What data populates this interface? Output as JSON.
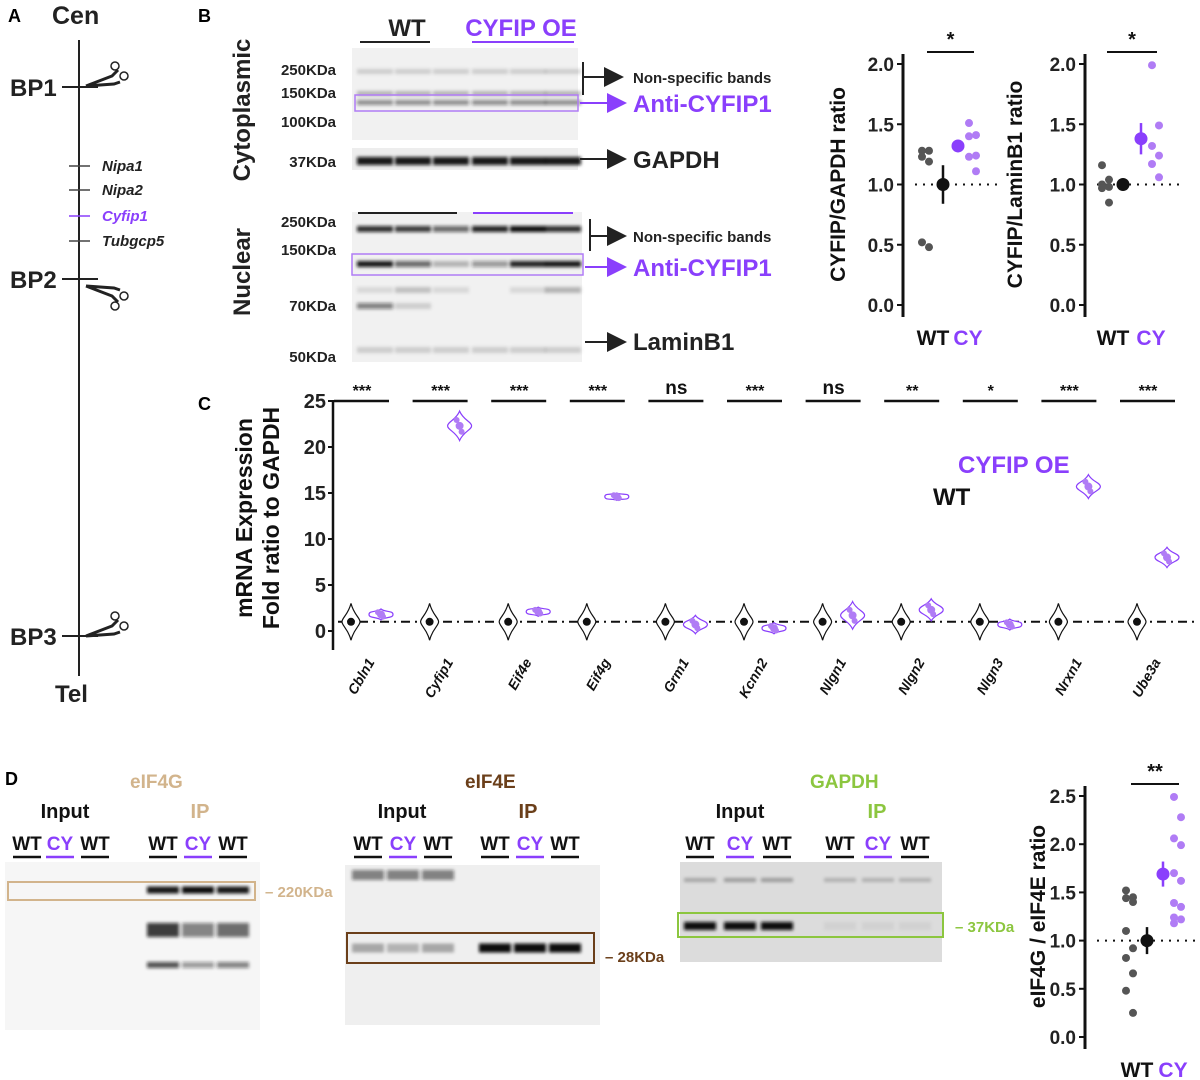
{
  "colors": {
    "wt": "#222222",
    "cy": "#8a3ffc",
    "cy_light": "#b07cf5",
    "eif4g": "#d2b48c",
    "eif4e": "#6b3f1a",
    "gapdh": "#8cc63f"
  },
  "panel_a": {
    "letter": "A",
    "top": "Cen",
    "bottom": "Tel",
    "breakpoints": [
      "BP1",
      "BP2",
      "BP3"
    ],
    "genes": [
      {
        "name": "Nipa1",
        "highlight": false
      },
      {
        "name": "Nipa2",
        "highlight": false
      },
      {
        "name": "Cyfip1",
        "highlight": true
      },
      {
        "name": "Tubgcp5",
        "highlight": false
      }
    ],
    "icon": "scissors-icon"
  },
  "panel_b": {
    "letter": "B",
    "groups": [
      "WT",
      "CYFIP OE"
    ],
    "cytoplasmic": {
      "label": "Cytoplasmic",
      "markers": [
        "250KDa",
        "150KDa",
        "100KDa"
      ],
      "gapdh_marker": "37KDa",
      "annotations": {
        "nonspecific": "Non-specific bands",
        "target": "Anti-CYFIP1",
        "loading": "GAPDH"
      }
    },
    "nuclear": {
      "label": "Nuclear",
      "markers": [
        "250KDa",
        "150KDa",
        "70KDa",
        "50KDa"
      ],
      "annotations": {
        "nonspecific": "Non-specific bands",
        "target": "Anti-CYFIP1",
        "loading": "LaminB1"
      }
    }
  },
  "panel_c": {
    "letter": "C"
  },
  "panel_d": {
    "letter": "D",
    "blots": [
      {
        "title": "eIF4G",
        "input": "Input",
        "ip": "IP",
        "lanes": [
          "WT",
          "CY",
          "WT",
          "WT",
          "CY",
          "WT"
        ],
        "marker": "220KDa"
      },
      {
        "title": "eIF4E",
        "input": "Input",
        "ip": "IP",
        "lanes": [
          "WT",
          "CY",
          "WT",
          "WT",
          "CY",
          "WT"
        ],
        "marker": "28KDa"
      },
      {
        "title": "GAPDH",
        "input": "Input",
        "ip": "IP",
        "lanes": [
          "WT",
          "CY",
          "WT",
          "WT",
          "CY",
          "WT"
        ],
        "marker": "37KDa"
      }
    ]
  },
  "chart_data": [
    {
      "id": "b1",
      "type": "scatter",
      "ylabel": "CYFIP/GAPDH ratio",
      "categories": [
        "WT",
        "CY"
      ],
      "ylim": [
        0,
        2.0
      ],
      "yticks": [
        "0.0",
        "0.5",
        "1.0",
        "1.5",
        "2.0"
      ],
      "reference_line": 1.0,
      "significance": "*",
      "groups": [
        {
          "name": "WT",
          "points": [
            1.28,
            1.28,
            1.23,
            1.19,
            0.52,
            0.48
          ],
          "mean": 1.0,
          "error": 0.16
        },
        {
          "name": "CY",
          "points": [
            1.51,
            1.41,
            1.4,
            1.24,
            1.23,
            1.11
          ],
          "mean": 1.32,
          "error": 0.05
        }
      ]
    },
    {
      "id": "b2",
      "type": "scatter",
      "ylabel": "CYFIP/LaminB1 ratio",
      "categories": [
        "WT",
        "CY"
      ],
      "ylim": [
        0,
        2.0
      ],
      "yticks": [
        "0.0",
        "0.5",
        "1.0",
        "1.5",
        "2.0"
      ],
      "reference_line": 1.0,
      "significance": "*",
      "groups": [
        {
          "name": "WT",
          "points": [
            1.16,
            1.04,
            1.0,
            0.98,
            0.97,
            0.85
          ],
          "mean": 1.0,
          "error": 0.02
        },
        {
          "name": "CY",
          "points": [
            1.99,
            1.49,
            1.32,
            1.24,
            1.17,
            1.06
          ],
          "mean": 1.38,
          "error": 0.13
        }
      ]
    },
    {
      "id": "c",
      "type": "violin",
      "ylabel": [
        "mRNA Expression",
        "Fold ratio to GAPDH"
      ],
      "ylim": [
        -2,
        25
      ],
      "yticks": [
        "0",
        "5",
        "10",
        "15",
        "20",
        "25"
      ],
      "reference_line": 1.0,
      "legend": [
        "CYFIP OE",
        "WT"
      ],
      "categories": [
        "Cbln1",
        "Cyfip1",
        "Eif4e",
        "Eif4g",
        "Grm1",
        "Kcnn2",
        "Nlgn1",
        "Nlgn2",
        "Nlgn3",
        "Nrxn1",
        "Ube3a"
      ],
      "significance": [
        "***",
        "***",
        "***",
        "***",
        "ns",
        "***",
        "ns",
        "**",
        "*",
        "***",
        "***"
      ],
      "series": [
        {
          "name": "WT",
          "values": [
            1,
            1,
            1,
            1,
            1,
            1,
            1,
            1,
            1,
            1,
            1
          ]
        },
        {
          "name": "CYFIP OE",
          "values": [
            1.8,
            22.3,
            2.1,
            14.6,
            0.7,
            0.3,
            1.7,
            2.3,
            0.7,
            15.7,
            8.0
          ]
        }
      ]
    },
    {
      "id": "d",
      "type": "scatter",
      "ylabel": "eIF4G / eIF4E ratio",
      "categories": [
        "WT",
        "CY"
      ],
      "ylim": [
        0,
        2.5
      ],
      "yticks": [
        "0.0",
        "0.5",
        "1.0",
        "1.5",
        "2.0",
        "2.5"
      ],
      "reference_line": 1.0,
      "significance": "**",
      "groups": [
        {
          "name": "WT",
          "points": [
            1.52,
            1.45,
            1.44,
            1.4,
            1.1,
            0.92,
            0.82,
            0.66,
            0.48,
            0.25
          ],
          "mean": 1.0,
          "error": 0.14
        },
        {
          "name": "CY",
          "points": [
            2.49,
            2.28,
            2.06,
            1.99,
            1.7,
            1.62,
            1.39,
            1.35,
            1.24,
            1.22,
            1.18
          ],
          "mean": 1.69,
          "error": 0.13
        }
      ]
    }
  ]
}
